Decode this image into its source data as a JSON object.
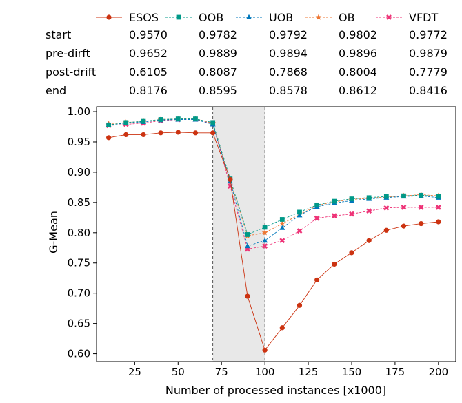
{
  "chart_data": {
    "type": "line",
    "xlabel": "Number of processed instances [x1000]",
    "ylabel": "G-Mean",
    "xlim": [
      3,
      210
    ],
    "ylim": [
      0.587,
      1.008
    ],
    "xticks": [
      25,
      50,
      75,
      100,
      125,
      150,
      175,
      200
    ],
    "yticks": [
      0.6,
      0.65,
      0.7,
      0.75,
      0.8,
      0.85,
      0.9,
      0.95,
      1.0
    ],
    "drift_region": [
      70,
      100
    ],
    "legend_position": "top",
    "table": {
      "row_labels": [
        "start",
        "pre-dirft",
        "post-drift",
        "end"
      ],
      "rows": [
        [
          "0.9570",
          "0.9782",
          "0.9792",
          "0.9802",
          "0.9772"
        ],
        [
          "0.9652",
          "0.9889",
          "0.9894",
          "0.9896",
          "0.9879"
        ],
        [
          "0.6105",
          "0.8087",
          "0.7868",
          "0.8004",
          "0.7779"
        ],
        [
          "0.8176",
          "0.8595",
          "0.8578",
          "0.8612",
          "0.8416"
        ]
      ]
    },
    "x": [
      10,
      20,
      30,
      40,
      50,
      60,
      70,
      80,
      90,
      100,
      110,
      120,
      130,
      140,
      150,
      160,
      170,
      180,
      190,
      200
    ],
    "series": [
      {
        "name": "ESOS",
        "color": "#cc3311",
        "marker": "circle",
        "values": [
          0.957,
          0.962,
          0.962,
          0.965,
          0.966,
          0.965,
          0.965,
          0.888,
          0.695,
          0.606,
          0.643,
          0.68,
          0.722,
          0.748,
          0.767,
          0.787,
          0.804,
          0.811,
          0.815,
          0.818
        ]
      },
      {
        "name": "OOB",
        "color": "#009988",
        "marker": "square",
        "values": [
          0.978,
          0.982,
          0.984,
          0.987,
          0.988,
          0.988,
          0.982,
          0.889,
          0.797,
          0.809,
          0.822,
          0.834,
          0.846,
          0.852,
          0.856,
          0.858,
          0.86,
          0.861,
          0.862,
          0.86
        ]
      },
      {
        "name": "UOB",
        "color": "#0077bb",
        "marker": "triangle",
        "values": [
          0.978,
          0.981,
          0.983,
          0.986,
          0.987,
          0.987,
          0.979,
          0.885,
          0.778,
          0.787,
          0.808,
          0.829,
          0.843,
          0.849,
          0.853,
          0.856,
          0.858,
          0.86,
          0.861,
          0.858
        ]
      },
      {
        "name": "OB",
        "color": "#ee7733",
        "marker": "star",
        "values": [
          0.98,
          0.982,
          0.984,
          0.987,
          0.988,
          0.988,
          0.981,
          0.886,
          0.795,
          0.8,
          0.815,
          0.83,
          0.845,
          0.851,
          0.855,
          0.857,
          0.859,
          0.861,
          0.863,
          0.861
        ]
      },
      {
        "name": "VFDT",
        "color": "#ee3377",
        "marker": "x",
        "values": [
          0.977,
          0.979,
          0.981,
          0.985,
          0.987,
          0.987,
          0.98,
          0.877,
          0.773,
          0.778,
          0.787,
          0.803,
          0.824,
          0.828,
          0.831,
          0.836,
          0.841,
          0.842,
          0.842,
          0.842
        ]
      }
    ]
  }
}
